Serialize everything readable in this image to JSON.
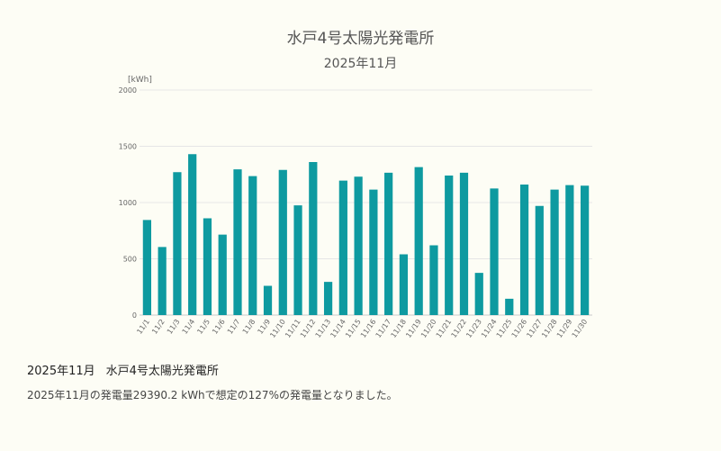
{
  "page": {
    "heading_month": "2025年11月",
    "heading_station": "水戸4号太陽光発電所",
    "summary": "2025年11月の発電量29390.2 kWhで想定の127%の発電量となりました。"
  },
  "colors": {
    "bar": "#0e9aa0",
    "grid": "#e6e6e6",
    "axis_text": "#666666",
    "background": "#fdfdf5"
  },
  "chart_data": {
    "type": "bar",
    "title": "水戸4号太陽光発電所",
    "subtitle": "2025年11月",
    "ylabel": "[kWh]",
    "xlabel": "",
    "ylim": [
      0,
      2000
    ],
    "yticks": [
      0,
      500,
      1000,
      1500,
      2000
    ],
    "grid": true,
    "legend": "none",
    "categories": [
      "11/1",
      "11/2",
      "11/3",
      "11/4",
      "11/5",
      "11/6",
      "11/7",
      "11/8",
      "11/9",
      "11/10",
      "11/11",
      "11/12",
      "11/13",
      "11/14",
      "11/15",
      "11/16",
      "11/17",
      "11/18",
      "11/19",
      "11/20",
      "11/21",
      "11/22",
      "11/23",
      "11/24",
      "11/25",
      "11/26",
      "11/27",
      "11/28",
      "11/29",
      "11/30"
    ],
    "values": [
      845,
      605,
      1270,
      1430,
      860,
      715,
      1295,
      1235,
      260,
      1290,
      975,
      1360,
      295,
      1195,
      1230,
      1115,
      1265,
      540,
      1315,
      620,
      1240,
      1265,
      375,
      1125,
      145,
      1160,
      970,
      1115,
      1155,
      1150
    ]
  }
}
